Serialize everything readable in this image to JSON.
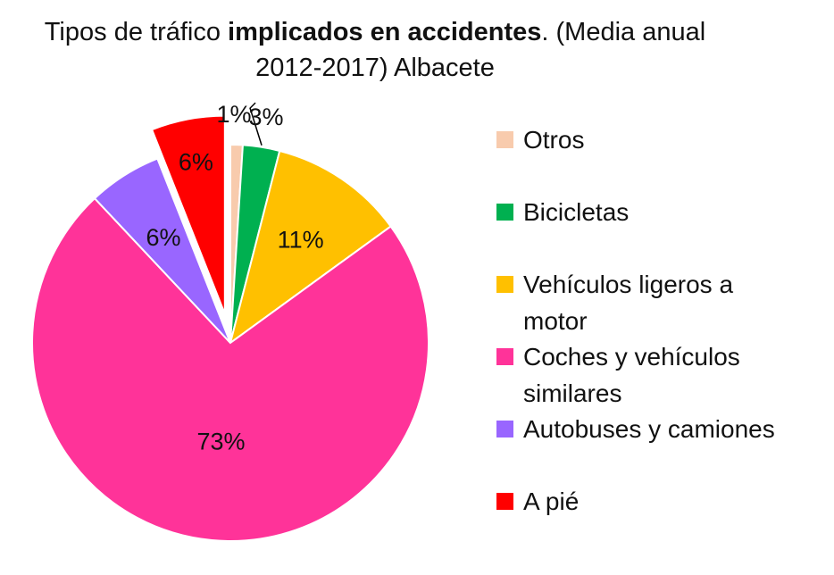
{
  "chart_data": {
    "type": "pie",
    "title_part1": "Tipos de tráfico ",
    "title_bold": "implicados en accidentes",
    "title_part2": ". (Media anual",
    "title_line2": "2012-2017) Albacete",
    "slices": [
      {
        "label": "Otros",
        "value": 1,
        "display": "1%",
        "color": "#F8CBAD"
      },
      {
        "label": "Bicicletas",
        "value": 3,
        "display": "3%",
        "color": "#00B050"
      },
      {
        "label": "Vehículos ligeros a motor",
        "value": 11,
        "display": "11%",
        "color": "#FFC000"
      },
      {
        "label": "Coches y vehículos similares",
        "value": 73,
        "display": "73%",
        "color": "#FF3399"
      },
      {
        "label": "Autobuses y camiones",
        "value": 6,
        "display": "6%",
        "color": "#9966FF"
      },
      {
        "label": "A pié",
        "value": 6,
        "display": "6%",
        "color": "#FF0000",
        "exploded": true
      }
    ],
    "legend_position": "right"
  },
  "legend": {
    "items": [
      {
        "line1": "Otros",
        "line2": ""
      },
      {
        "line1": "Bicicletas",
        "line2": ""
      },
      {
        "line1": "Vehículos ligeros a",
        "line2": "motor"
      },
      {
        "line1": "Coches y vehículos",
        "line2": "similares"
      },
      {
        "line1": "Autobuses y camiones",
        "line2": ""
      },
      {
        "line1": "A pié",
        "line2": ""
      }
    ]
  }
}
